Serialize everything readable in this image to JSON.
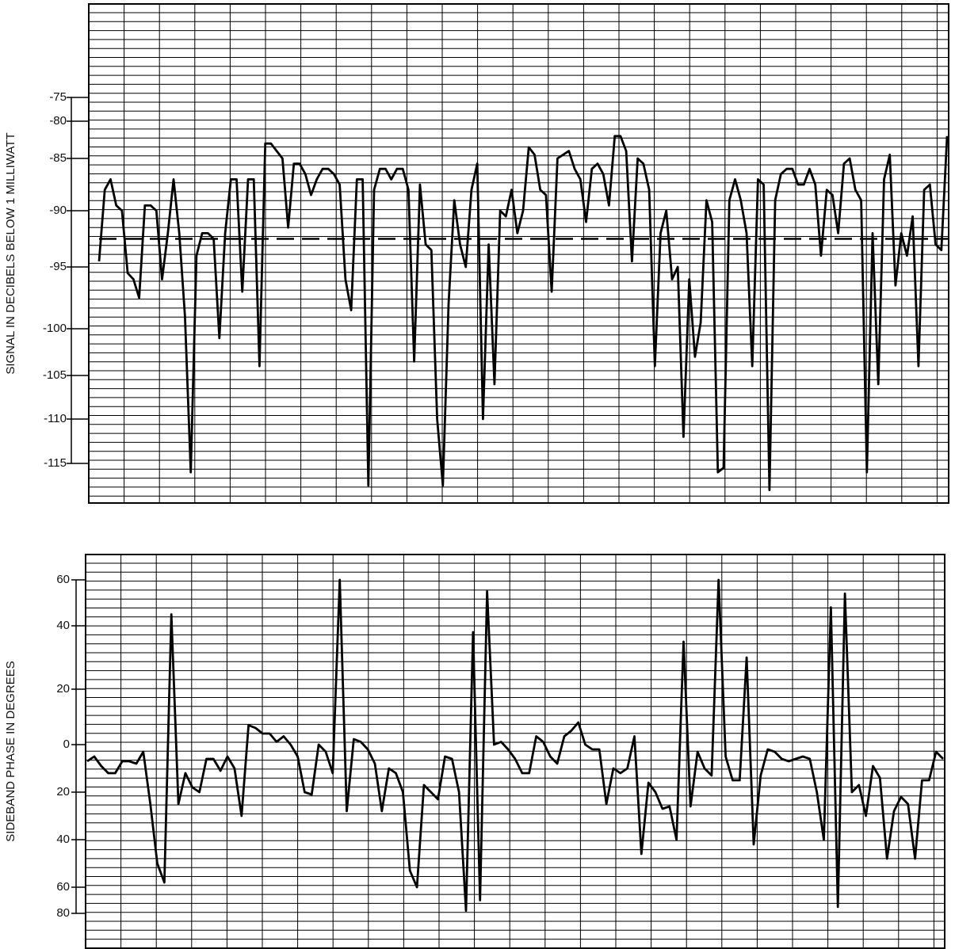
{
  "chart_data": [
    {
      "type": "line",
      "y_label": "SIGNAL IN DECIBELS BELOW 1 MILLIWATT",
      "color": "#000000",
      "ylim": [
        -115,
        -75
      ],
      "yticks": [
        -75,
        -80,
        -85,
        -90,
        -95,
        -100,
        -105,
        -110,
        -115
      ],
      "reference_value": -92.5,
      "values": [
        -94.5,
        -88,
        -87,
        -89.5,
        -90,
        -95.5,
        -96,
        -97.5,
        -89.5,
        -89.5,
        -90,
        -96,
        -92,
        -87,
        -92,
        -99,
        -116,
        -94,
        -92,
        -92,
        -92.5,
        -101,
        -92,
        -87,
        -87,
        -97,
        -87,
        -87,
        -104,
        -83,
        -83,
        -84,
        -85,
        -91.5,
        -85.5,
        -85.5,
        -86.5,
        -88.5,
        -87,
        -86,
        -86,
        -86.5,
        -87.5,
        -96,
        -98.5,
        -87,
        -87,
        -117.5,
        -88,
        -86,
        -86,
        -87,
        -86,
        -86,
        -88,
        -103.5,
        -87.5,
        -93,
        -93.5,
        -110,
        -117.5,
        -98,
        -89,
        -93,
        -95,
        -88,
        -85.5,
        -110,
        -93,
        -106,
        -90,
        -90.5,
        -88,
        -92,
        -90,
        -83.5,
        -84.5,
        -88,
        -88.5,
        -97,
        -85,
        -84.5,
        -84,
        -86,
        -87,
        -91,
        -86,
        -85.5,
        -86.5,
        -89.5,
        -82,
        -82,
        -84,
        -94.5,
        -85,
        -85.5,
        -88,
        -104,
        -92,
        -90,
        -96,
        -95,
        -112,
        -96,
        -103,
        -99.5,
        -89,
        -91,
        -116,
        -115.5,
        -89,
        -87,
        -89,
        -92,
        -104,
        -87,
        -87.5,
        -118,
        -89,
        -86.5,
        -86,
        -86,
        -87.5,
        -87.5,
        -86,
        -87.5,
        -94,
        -88,
        -88.5,
        -92,
        -85.5,
        -85,
        -88,
        -89,
        -116,
        -92,
        -106,
        -87,
        -84.5,
        -96.5,
        -92,
        -94,
        -90.5,
        -104,
        -88,
        -87.5,
        -93,
        -93.5,
        -82
      ]
    },
    {
      "type": "line",
      "y_label": "SIDEBAND PHASE IN DEGREES",
      "color": "#000000",
      "ylim": [
        -80,
        60
      ],
      "yticks": [
        60,
        40,
        20,
        0,
        {
          "value": -20,
          "label": "20"
        },
        {
          "value": -40,
          "label": "40"
        },
        {
          "value": -60,
          "label": "60"
        },
        {
          "value": -80,
          "label": "80"
        }
      ],
      "values": [
        -7,
        -5,
        -9,
        -12,
        -12,
        -7,
        -7,
        -8,
        -3,
        -25,
        -50,
        -58,
        45,
        -25,
        -12,
        -18,
        -20,
        -6,
        -6,
        -11,
        -5,
        -10,
        -30,
        7,
        6,
        4,
        4,
        1,
        3,
        0,
        -5,
        -20,
        -21,
        0,
        -3,
        -12,
        60,
        -28,
        2,
        1,
        -2,
        -8,
        -28,
        -10,
        -12,
        -20,
        -53,
        -60,
        -17,
        -20,
        -23,
        -5,
        -6,
        -20,
        -78,
        38,
        -70,
        55,
        0,
        1,
        -2,
        -6,
        -12,
        -12,
        3,
        1,
        -5,
        -8,
        3,
        5,
        8,
        0,
        -2,
        -2,
        -25,
        -10,
        -12,
        -10,
        3,
        -46,
        -16,
        -20,
        -27,
        -26,
        -40,
        35,
        -26,
        -3,
        -10,
        -13,
        60,
        -5,
        -15,
        -15,
        30,
        -42,
        -13,
        -2,
        -3,
        -6,
        -7,
        -6,
        -5,
        -6,
        -20,
        -40,
        48,
        -75,
        54,
        -20,
        -17,
        -30,
        -9,
        -14,
        -48,
        -28,
        -22,
        -25,
        -48,
        -15,
        -15,
        -3,
        -6
      ]
    }
  ]
}
